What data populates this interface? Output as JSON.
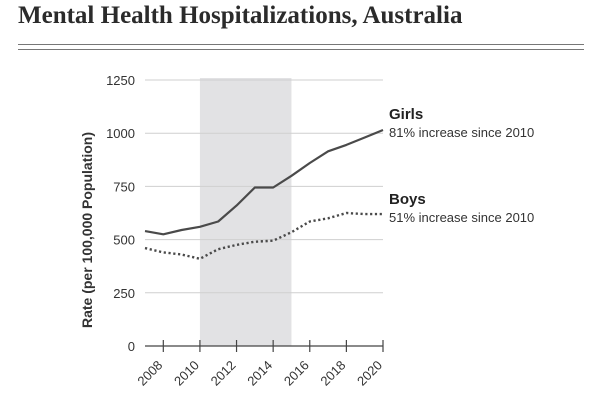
{
  "page": {
    "title": "Mental Health Hospitalizations, Australia"
  },
  "chart_data": {
    "type": "line",
    "title": "Mental Health Hospitalizations, Australia",
    "xlabel": "",
    "ylabel": "Rate (per 100,000 Population)",
    "xlim": [
      2007,
      2020
    ],
    "ylim": [
      0,
      1250
    ],
    "x_ticks": [
      2008,
      2010,
      2012,
      2014,
      2016,
      2018,
      2020
    ],
    "y_ticks": [
      0,
      250,
      500,
      750,
      1000,
      1250
    ],
    "grid": "horizontal",
    "shaded_region": {
      "x_start": 2010,
      "x_end": 2015,
      "color": "#e2e2e4"
    },
    "x": [
      2007,
      2008,
      2009,
      2010,
      2011,
      2012,
      2013,
      2014,
      2015,
      2016,
      2017,
      2018,
      2019,
      2020
    ],
    "series": [
      {
        "name": "Girls",
        "annotation": "81% increase since 2010",
        "style": "solid",
        "color": "#4a4a4a",
        "values": [
          540,
          525,
          545,
          560,
          585,
          660,
          745,
          745,
          800,
          860,
          915,
          945,
          980,
          1015
        ]
      },
      {
        "name": "Boys",
        "annotation": "51% increase since 2010",
        "style": "dotted",
        "color": "#4a4a4a",
        "values": [
          460,
          440,
          430,
          410,
          455,
          475,
          490,
          495,
          535,
          585,
          600,
          625,
          620,
          620
        ]
      }
    ]
  }
}
